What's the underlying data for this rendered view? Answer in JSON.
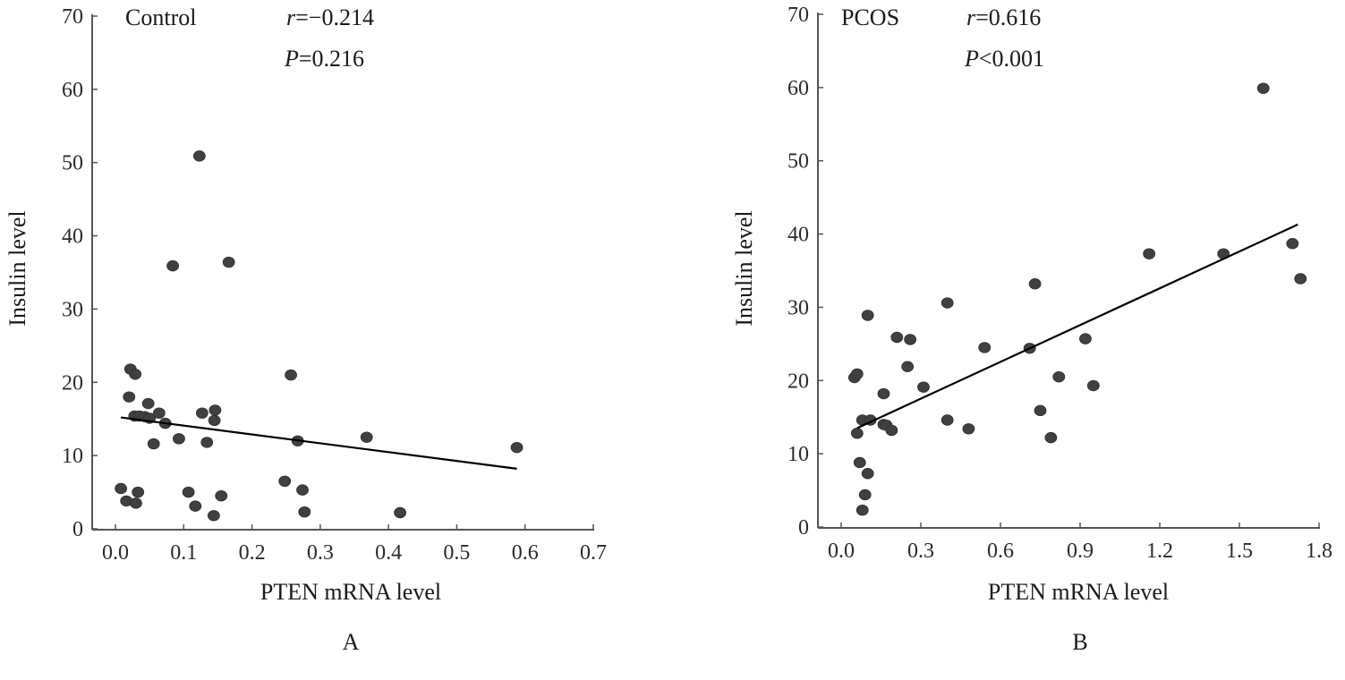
{
  "chart_data": [
    {
      "type": "scatter",
      "panel": "A",
      "group_label": "Control",
      "stats": {
        "r_label": "r",
        "r_text": "=−0.214",
        "p_label": "P",
        "p_text": "=0.216"
      },
      "xlabel": "PTEN mRNA level",
      "ylabel": "Insulin level",
      "xlim": [
        0,
        0.7
      ],
      "ylim": [
        0,
        70
      ],
      "xticks": [
        "0.0",
        "0.1",
        "0.2",
        "0.3",
        "0.4",
        "0.5",
        "0.6",
        "0.7"
      ],
      "xtick_values": [
        0,
        0.1,
        0.2,
        0.3,
        0.4,
        0.5,
        0.6,
        0.7
      ],
      "yticks": [
        "0",
        "10",
        "20",
        "30",
        "40",
        "50",
        "60",
        "70"
      ],
      "ytick_values": [
        0,
        10,
        20,
        30,
        40,
        50,
        60,
        70
      ],
      "grid": false,
      "fit_line": {
        "x": [
          0.008,
          0.588
        ],
        "y": [
          15.2,
          8.2
        ]
      },
      "points": [
        [
          0.008,
          5.5
        ],
        [
          0.016,
          3.8
        ],
        [
          0.022,
          21.8
        ],
        [
          0.029,
          21.1
        ],
        [
          0.02,
          18.0
        ],
        [
          0.028,
          15.4
        ],
        [
          0.035,
          15.4
        ],
        [
          0.043,
          15.3
        ],
        [
          0.05,
          15.1
        ],
        [
          0.048,
          17.1
        ],
        [
          0.064,
          15.8
        ],
        [
          0.056,
          11.6
        ],
        [
          0.033,
          5.0
        ],
        [
          0.03,
          3.5
        ],
        [
          0.073,
          14.4
        ],
        [
          0.093,
          12.3
        ],
        [
          0.107,
          5.0
        ],
        [
          0.117,
          3.1
        ],
        [
          0.123,
          50.9
        ],
        [
          0.127,
          15.8
        ],
        [
          0.134,
          11.8
        ],
        [
          0.145,
          14.8
        ],
        [
          0.146,
          16.2
        ],
        [
          0.144,
          1.8
        ],
        [
          0.155,
          4.5
        ],
        [
          0.084,
          35.9
        ],
        [
          0.166,
          36.4
        ],
        [
          0.257,
          21.0
        ],
        [
          0.248,
          6.5
        ],
        [
          0.267,
          12.0
        ],
        [
          0.274,
          5.3
        ],
        [
          0.277,
          2.3
        ],
        [
          0.368,
          12.5
        ],
        [
          0.417,
          2.2
        ],
        [
          0.588,
          11.1
        ]
      ]
    },
    {
      "type": "scatter",
      "panel": "B",
      "group_label": "PCOS",
      "stats": {
        "r_label": "r",
        "r_text": "=0.616",
        "p_label": "P",
        "p_text": "<0.001"
      },
      "xlabel": "PTEN mRNA level",
      "ylabel": "Insulin level",
      "xlim": [
        0,
        1.8
      ],
      "ylim": [
        0,
        70
      ],
      "xticks": [
        "0.0",
        "0.3",
        "0.6",
        "0.9",
        "1.2",
        "1.5",
        "1.8"
      ],
      "xtick_values": [
        0,
        0.3,
        0.6,
        0.9,
        1.2,
        1.5,
        1.8
      ],
      "yticks": [
        "0",
        "10",
        "20",
        "30",
        "40",
        "50",
        "60",
        "70"
      ],
      "ytick_values": [
        0,
        10,
        20,
        30,
        40,
        50,
        60,
        70
      ],
      "grid": false,
      "fit_line": {
        "x": [
          0.06,
          1.72
        ],
        "y": [
          13.5,
          41.3
        ]
      },
      "points": [
        [
          0.05,
          20.4
        ],
        [
          0.06,
          20.9
        ],
        [
          0.1,
          28.9
        ],
        [
          0.21,
          25.9
        ],
        [
          0.26,
          25.6
        ],
        [
          0.25,
          21.9
        ],
        [
          0.16,
          18.2
        ],
        [
          0.31,
          19.1
        ],
        [
          0.08,
          14.6
        ],
        [
          0.11,
          14.6
        ],
        [
          0.16,
          14.0
        ],
        [
          0.17,
          13.9
        ],
        [
          0.19,
          13.2
        ],
        [
          0.06,
          12.8
        ],
        [
          0.07,
          8.8
        ],
        [
          0.1,
          7.3
        ],
        [
          0.09,
          4.4
        ],
        [
          0.08,
          2.3
        ],
        [
          0.4,
          30.6
        ],
        [
          0.54,
          24.5
        ],
        [
          0.4,
          14.6
        ],
        [
          0.48,
          13.4
        ],
        [
          0.71,
          24.4
        ],
        [
          0.75,
          15.9
        ],
        [
          0.79,
          12.2
        ],
        [
          0.82,
          20.5
        ],
        [
          0.92,
          25.7
        ],
        [
          0.95,
          19.3
        ],
        [
          0.73,
          33.2
        ],
        [
          1.16,
          37.3
        ],
        [
          1.44,
          37.3
        ],
        [
          1.7,
          38.7
        ],
        [
          1.73,
          33.9
        ],
        [
          1.59,
          59.9
        ]
      ]
    }
  ]
}
